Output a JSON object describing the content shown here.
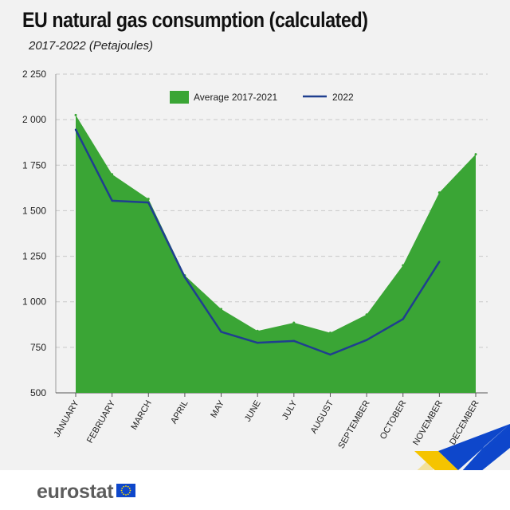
{
  "header": {
    "title": "EU natural gas consumption (calculated)",
    "subtitle": "2017-2022 (Petajoules)"
  },
  "footer": {
    "logo_text": "eurostat"
  },
  "colors": {
    "area": "#3aa535",
    "line": "#1f3f8f",
    "grid": "#c8c8c8",
    "ribbon_yellow": "#f5c400",
    "ribbon_blue": "#0e47cb",
    "flag_blue": "#0e47cb",
    "flag_stars": "#ffdd00"
  },
  "chart_data": {
    "type": "area",
    "categories": [
      "JANUARY",
      "FEBRUARY",
      "MARCH",
      "APRIL",
      "MAY",
      "JUNE",
      "JULY",
      "AUGUST",
      "SEPTEMBER",
      "OCTOBER",
      "NOVEMBER",
      "DECEMBER"
    ],
    "series": [
      {
        "name": "Average 2017-2021",
        "type": "area",
        "values": [
          2025,
          1700,
          1565,
          1145,
          960,
          840,
          885,
          830,
          930,
          1200,
          1600,
          1810
        ]
      },
      {
        "name": "2022",
        "type": "line",
        "values": [
          1945,
          1555,
          1545,
          1135,
          835,
          775,
          785,
          710,
          790,
          905,
          1220,
          null
        ]
      }
    ],
    "yticks": [
      "2 250",
      "2 000",
      "1 750",
      "1 500",
      "1 250",
      "1 000",
      "750",
      "500"
    ],
    "ytick_values": [
      2250,
      2000,
      1750,
      1500,
      1250,
      1000,
      750,
      500
    ],
    "ylim": [
      500,
      2250
    ],
    "grid": true,
    "legend_position": "top"
  }
}
